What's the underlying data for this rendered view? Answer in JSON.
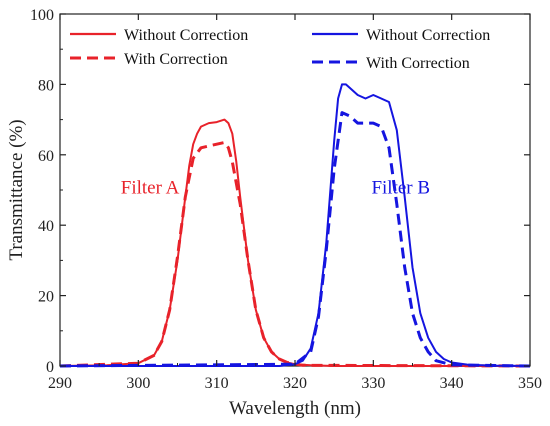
{
  "chart_data": {
    "type": "line",
    "xlabel": "Wavelength (nm)",
    "ylabel": "Transmittance (%)",
    "xlim": [
      290,
      350
    ],
    "ylim": [
      0,
      100
    ],
    "xticks": [
      "290",
      "300",
      "310",
      "320",
      "330",
      "340",
      "350"
    ],
    "yticks": [
      "0",
      "20",
      "40",
      "60",
      "80",
      "100"
    ],
    "grid": false,
    "legend_placement": "top, two columns",
    "annotations": [
      {
        "text": "Filter A",
        "x": 301.5,
        "y": 49,
        "color": "#e8222a"
      },
      {
        "text": "Filter B",
        "x": 333.5,
        "y": 49,
        "color": "#1515e0"
      }
    ],
    "series": [
      {
        "name": "Without Correction",
        "filter": "Filter A",
        "color": "#e8222a",
        "dash": "solid",
        "x": [
          290,
          296,
          300,
          302,
          303,
          304,
          305,
          306,
          306.5,
          307,
          307.5,
          308,
          309,
          310,
          311,
          311.5,
          312,
          312.5,
          313,
          314,
          315,
          316,
          317,
          318,
          319,
          320,
          322,
          325,
          350
        ],
        "y": [
          0,
          0.2,
          0.8,
          3,
          7,
          16,
          30,
          48,
          57,
          63,
          66,
          68,
          69,
          69.3,
          70,
          69,
          66,
          58,
          48,
          30,
          16,
          8,
          4,
          2,
          1,
          0.5,
          0.2,
          0,
          0
        ]
      },
      {
        "name": "With Correction",
        "filter": "Filter A",
        "color": "#e8222a",
        "dash": "dashed",
        "x": [
          290,
          300,
          302,
          303,
          304,
          305,
          306,
          307,
          308,
          309,
          310,
          311,
          311.5,
          312,
          313,
          314,
          315,
          316,
          317,
          318,
          319,
          321,
          350
        ],
        "y": [
          0,
          0.8,
          3,
          7,
          16,
          31,
          48,
          59,
          62,
          62.5,
          63,
          63.5,
          62,
          58,
          46,
          30,
          16,
          8,
          4,
          2,
          1,
          0.2,
          0
        ]
      },
      {
        "name": "Without Correction",
        "filter": "Filter B",
        "color": "#1515e0",
        "dash": "solid",
        "x": [
          290,
          318,
          320,
          321,
          322,
          323,
          324,
          325,
          325.5,
          326,
          326.5,
          327,
          328,
          329,
          330,
          331,
          332,
          333,
          334,
          335,
          336,
          337,
          338,
          339,
          340,
          342,
          345,
          350
        ],
        "y": [
          0,
          0,
          0.5,
          1.5,
          5,
          15,
          35,
          64,
          76,
          80,
          80,
          79,
          77,
          76,
          77,
          76,
          75,
          67,
          48,
          28,
          15,
          8,
          4,
          2,
          1,
          0.4,
          0.1,
          0
        ]
      },
      {
        "name": "With Correction",
        "filter": "Filter B",
        "color": "#1515e0",
        "dash": "dashed",
        "x": [
          290,
          320,
          322,
          323,
          324,
          325,
          326,
          327,
          328,
          329,
          330,
          331,
          332,
          333,
          334,
          335,
          336,
          337,
          338,
          340,
          350
        ],
        "y": [
          0,
          0.5,
          4,
          14,
          33,
          56,
          72,
          71,
          69,
          69,
          69,
          68,
          62,
          46,
          28,
          15,
          8,
          4,
          1.5,
          0.3,
          0
        ]
      }
    ]
  }
}
